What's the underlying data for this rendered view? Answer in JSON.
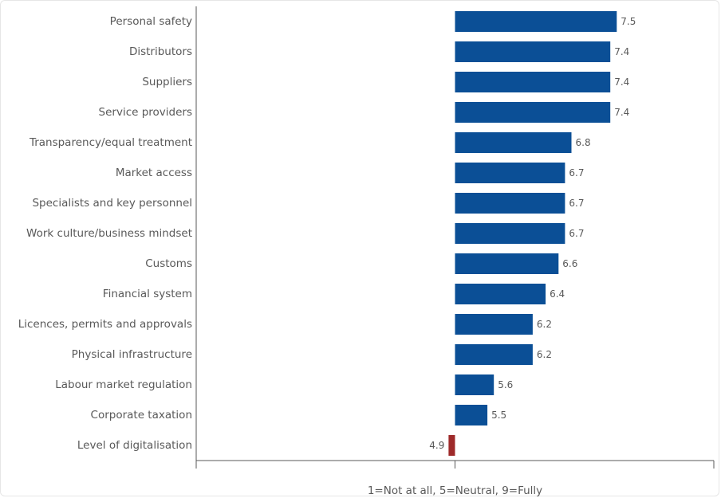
{
  "chart_data": {
    "type": "bar",
    "orientation": "horizontal",
    "categories": [
      "Personal safety",
      "Distributors",
      "Suppliers",
      "Service providers",
      "Transparency/equal treatment",
      "Market access",
      "Specialists and key personnel",
      "Work culture/business mindset",
      "Customs",
      "Financial system",
      "Licences, permits and approvals",
      "Physical infrastructure",
      "Labour market regulation",
      "Corporate taxation",
      "Level of digitalisation"
    ],
    "values": [
      7.5,
      7.4,
      7.4,
      7.4,
      6.8,
      6.7,
      6.7,
      6.7,
      6.6,
      6.4,
      6.2,
      6.2,
      5.6,
      5.5,
      4.9
    ],
    "value_labels": [
      "7.5",
      "7.4",
      "7.4",
      "7.4",
      "6.8",
      "6.7",
      "6.7",
      "6.7",
      "6.6",
      "6.4",
      "6.2",
      "6.2",
      "5.6",
      "5.5",
      "4.9"
    ],
    "baseline": 5,
    "xlim": [
      1,
      9
    ],
    "xlabel": "1=Not at all, 5=Neutral, 9=Fully",
    "ylabel": "",
    "title": "",
    "grid": false,
    "legend": "none",
    "colors": {
      "above_neutral": "#0b4f96",
      "below_neutral": "#9e2a2a"
    }
  }
}
